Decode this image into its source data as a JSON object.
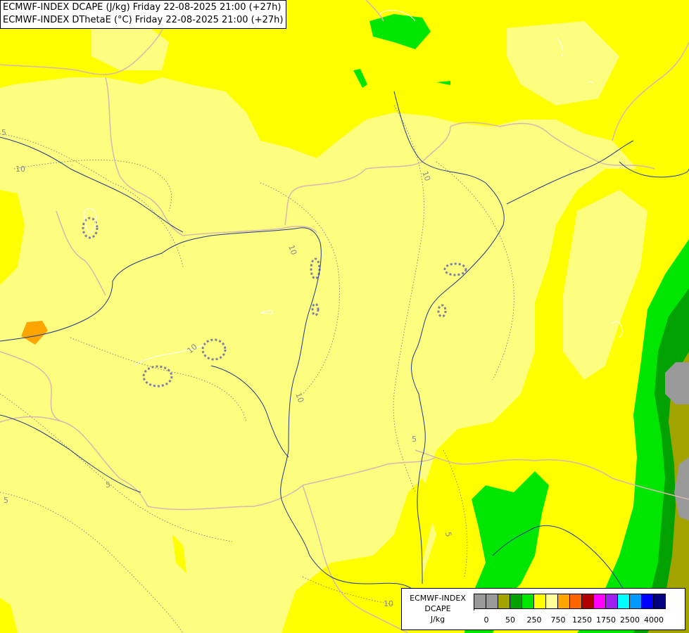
{
  "header": {
    "line1": "ECMWF-INDEX DCAPE (J/kg) Friday 22-08-2025 21:00 (+27h)",
    "line2": "ECMWF-INDEX DThetaE (°C) Friday 22-08-2025 21:00 (+27h)"
  },
  "legend": {
    "title_line1": "ECMWF-INDEX",
    "title_line2": "DCAPE",
    "unit": "J/kg",
    "colors": [
      "#999999",
      "#999999",
      "#a3a300",
      "#00a100",
      "#00e600",
      "#ffff00",
      "#ffff99",
      "#ffa500",
      "#ff6600",
      "#b00000",
      "#ff00ff",
      "#a020f0",
      "#00ffff",
      "#0099ff",
      "#0000ff",
      "#000080"
    ],
    "tick_labels": [
      "0",
      "50",
      "250",
      "750",
      "1250",
      "1750",
      "2500",
      "4000"
    ]
  },
  "contour_labels": [
    "5",
    "10",
    "10",
    "10",
    "10",
    "5",
    "5",
    "5",
    "10",
    "10",
    "5"
  ],
  "palette": {
    "base_fill": "#fdfd80",
    "yellow": "#ffff00",
    "light_green": "#00e600",
    "dark_green": "#00a100",
    "olive": "#a3a300",
    "grey": "#999999",
    "orange": "#ffa500",
    "rivers": "#1f3b8c",
    "borders": "#d7b8b0"
  }
}
